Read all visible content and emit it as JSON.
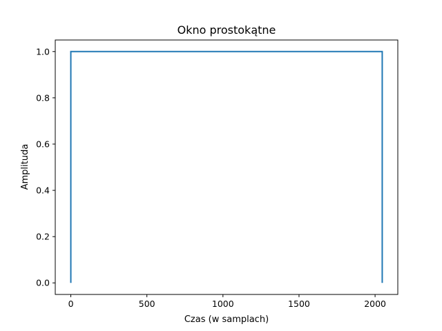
{
  "chart_data": {
    "type": "line",
    "title": "Okno prostokątne",
    "xlabel": "Czas (w samplach)",
    "ylabel": "Amplituda",
    "xlim": [
      -102.35,
      2149.35
    ],
    "ylim": [
      -0.05,
      1.05
    ],
    "xticks": [
      0,
      500,
      1000,
      1500,
      2000
    ],
    "xtick_labels": [
      "0",
      "500",
      "1000",
      "1500",
      "2000"
    ],
    "yticks": [
      0.0,
      0.2,
      0.4,
      0.6,
      0.8,
      1.0
    ],
    "ytick_labels": [
      "0.0",
      "0.2",
      "0.4",
      "0.6",
      "0.8",
      "1.0"
    ],
    "grid": false,
    "series": [
      {
        "color": "#1f77b4",
        "x": [
          0,
          0,
          2047,
          2047
        ],
        "y": [
          0,
          1,
          1,
          0
        ]
      }
    ]
  }
}
